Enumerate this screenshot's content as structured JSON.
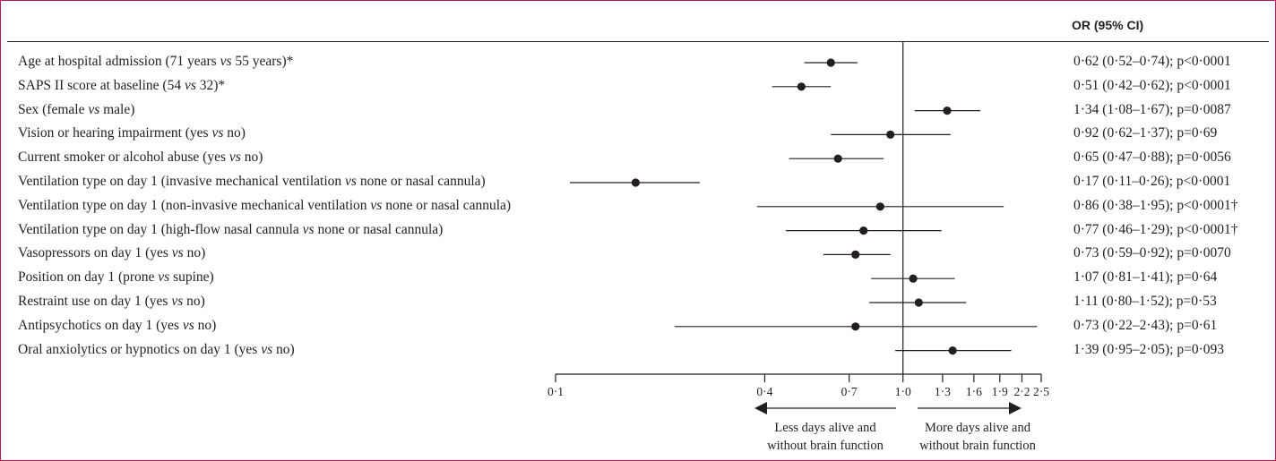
{
  "header": {
    "ci_column": "OR (95% CI)"
  },
  "chart_data": {
    "type": "forest",
    "x_scale": "log",
    "xlim": [
      0.1,
      2.5
    ],
    "reference_line": 1.0,
    "x_ticks": [
      0.1,
      0.4,
      0.7,
      1.0,
      1.3,
      1.6,
      1.9,
      2.2,
      2.5
    ],
    "x_tick_labels": [
      "0·1",
      "0·4",
      "0·7",
      "1·0",
      "1·3",
      "1·6",
      "1·9",
      "2·2",
      "2·5"
    ],
    "left_note": [
      "Less days alive and",
      "without brain function"
    ],
    "right_note": [
      "More days alive and",
      "without brain function"
    ],
    "rows": [
      {
        "label": "Age at hospital admission (71 years vs 55 years)*",
        "or": 0.62,
        "lo": 0.52,
        "hi": 0.74,
        "ci_text": "0·62 (0·52–0·74); p<0·0001"
      },
      {
        "label": "SAPS II score at baseline (54 vs 32)*",
        "or": 0.51,
        "lo": 0.42,
        "hi": 0.62,
        "ci_text": "0·51 (0·42–0·62); p<0·0001"
      },
      {
        "label": "Sex (female vs male)",
        "or": 1.34,
        "lo": 1.08,
        "hi": 1.67,
        "ci_text": "1·34 (1·08–1·67); p=0·0087"
      },
      {
        "label": "Vision or hearing impairment (yes vs no)",
        "or": 0.92,
        "lo": 0.62,
        "hi": 1.37,
        "ci_text": "0·92 (0·62–1·37); p=0·69"
      },
      {
        "label": "Current smoker or alcohol abuse (yes vs no)",
        "or": 0.65,
        "lo": 0.47,
        "hi": 0.88,
        "ci_text": "0·65 (0·47–0·88); p=0·0056"
      },
      {
        "label": "Ventilation type on day 1 (invasive mechanical ventilation vs none or nasal cannula)",
        "or": 0.17,
        "lo": 0.11,
        "hi": 0.26,
        "ci_text": "0·17 (0·11–0·26); p<0·0001"
      },
      {
        "label": "Ventilation type on day 1 (non-invasive mechanical ventilation vs none or nasal cannula)",
        "or": 0.86,
        "lo": 0.38,
        "hi": 1.95,
        "ci_text": "0·86 (0·38–1·95); p<0·0001†"
      },
      {
        "label": "Ventilation type on day 1 (high-flow nasal cannula vs none or nasal cannula)",
        "or": 0.77,
        "lo": 0.46,
        "hi": 1.29,
        "ci_text": "0·77 (0·46–1·29); p<0·0001†"
      },
      {
        "label": "Vasopressors on day 1 (yes vs no)",
        "or": 0.73,
        "lo": 0.59,
        "hi": 0.92,
        "ci_text": "0·73 (0·59–0·92); p=0·0070"
      },
      {
        "label": "Position on day 1 (prone vs supine)",
        "or": 1.07,
        "lo": 0.81,
        "hi": 1.41,
        "ci_text": "1·07 (0·81–1·41); p=0·64"
      },
      {
        "label": "Restraint use on day 1 (yes vs no)",
        "or": 1.11,
        "lo": 0.8,
        "hi": 1.52,
        "ci_text": "1·11 (0·80–1·52); p=0·53"
      },
      {
        "label": "Antipsychotics on day 1 (yes vs no)",
        "or": 0.73,
        "lo": 0.22,
        "hi": 2.43,
        "ci_text": "0·73 (0·22–2·43); p=0·61"
      },
      {
        "label": "Oral anxiolytics or hypnotics on day 1 (yes vs no)",
        "or": 1.39,
        "lo": 0.95,
        "hi": 2.05,
        "ci_text": "1·39 (0·95–2·05); p=0·093"
      }
    ]
  }
}
